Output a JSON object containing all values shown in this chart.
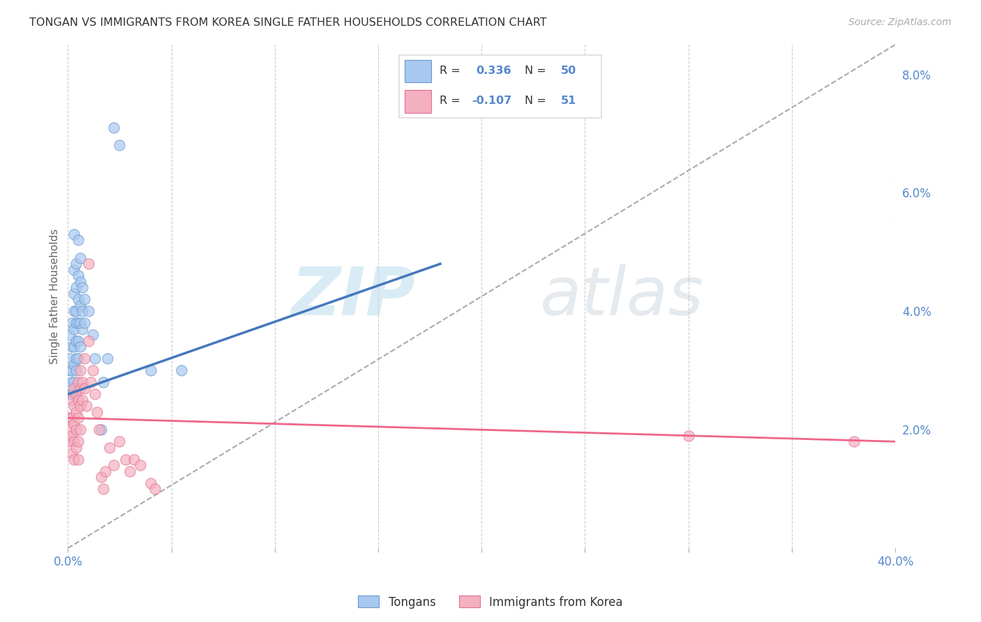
{
  "title": "TONGAN VS IMMIGRANTS FROM KOREA SINGLE FATHER HOUSEHOLDS CORRELATION CHART",
  "source": "Source: ZipAtlas.com",
  "ylabel": "Single Father Households",
  "xlim": [
    0.0,
    0.4
  ],
  "ylim": [
    0.0,
    0.085
  ],
  "legend_label1": "Tongans",
  "legend_label2": "Immigrants from Korea",
  "R1": 0.336,
  "N1": 50,
  "R2": -0.107,
  "N2": 51,
  "color_blue": "#A8C8F0",
  "color_pink": "#F4B0C0",
  "edge_blue": "#6699CC",
  "edge_pink": "#E07090",
  "line_blue": "#4477BB",
  "line_pink": "#EE6688",
  "text_blue": "#5588CC",
  "grid_color": "#CCCCCC",
  "scatter_blue": [
    [
      0.001,
      0.036
    ],
    [
      0.001,
      0.032
    ],
    [
      0.001,
      0.03
    ],
    [
      0.001,
      0.026
    ],
    [
      0.002,
      0.038
    ],
    [
      0.002,
      0.034
    ],
    [
      0.002,
      0.03
    ],
    [
      0.002,
      0.028
    ],
    [
      0.002,
      0.026
    ],
    [
      0.003,
      0.053
    ],
    [
      0.003,
      0.047
    ],
    [
      0.003,
      0.043
    ],
    [
      0.003,
      0.04
    ],
    [
      0.003,
      0.037
    ],
    [
      0.003,
      0.034
    ],
    [
      0.003,
      0.031
    ],
    [
      0.003,
      0.028
    ],
    [
      0.004,
      0.048
    ],
    [
      0.004,
      0.044
    ],
    [
      0.004,
      0.04
    ],
    [
      0.004,
      0.038
    ],
    [
      0.004,
      0.035
    ],
    [
      0.004,
      0.032
    ],
    [
      0.004,
      0.03
    ],
    [
      0.005,
      0.052
    ],
    [
      0.005,
      0.046
    ],
    [
      0.005,
      0.042
    ],
    [
      0.005,
      0.038
    ],
    [
      0.005,
      0.035
    ],
    [
      0.005,
      0.032
    ],
    [
      0.006,
      0.049
    ],
    [
      0.006,
      0.045
    ],
    [
      0.006,
      0.041
    ],
    [
      0.006,
      0.038
    ],
    [
      0.006,
      0.034
    ],
    [
      0.007,
      0.044
    ],
    [
      0.007,
      0.04
    ],
    [
      0.007,
      0.037
    ],
    [
      0.008,
      0.042
    ],
    [
      0.008,
      0.038
    ],
    [
      0.01,
      0.04
    ],
    [
      0.012,
      0.036
    ],
    [
      0.013,
      0.032
    ],
    [
      0.016,
      0.02
    ],
    [
      0.017,
      0.028
    ],
    [
      0.019,
      0.032
    ],
    [
      0.022,
      0.071
    ],
    [
      0.025,
      0.068
    ],
    [
      0.04,
      0.03
    ],
    [
      0.055,
      0.03
    ]
  ],
  "scatter_pink": [
    [
      0.001,
      0.022
    ],
    [
      0.001,
      0.02
    ],
    [
      0.001,
      0.018
    ],
    [
      0.002,
      0.025
    ],
    [
      0.002,
      0.022
    ],
    [
      0.002,
      0.019
    ],
    [
      0.002,
      0.016
    ],
    [
      0.003,
      0.027
    ],
    [
      0.003,
      0.024
    ],
    [
      0.003,
      0.021
    ],
    [
      0.003,
      0.018
    ],
    [
      0.003,
      0.015
    ],
    [
      0.004,
      0.026
    ],
    [
      0.004,
      0.023
    ],
    [
      0.004,
      0.02
    ],
    [
      0.004,
      0.017
    ],
    [
      0.005,
      0.028
    ],
    [
      0.005,
      0.025
    ],
    [
      0.005,
      0.022
    ],
    [
      0.005,
      0.018
    ],
    [
      0.005,
      0.015
    ],
    [
      0.006,
      0.03
    ],
    [
      0.006,
      0.027
    ],
    [
      0.006,
      0.024
    ],
    [
      0.006,
      0.02
    ],
    [
      0.007,
      0.028
    ],
    [
      0.007,
      0.025
    ],
    [
      0.008,
      0.032
    ],
    [
      0.008,
      0.027
    ],
    [
      0.009,
      0.024
    ],
    [
      0.01,
      0.048
    ],
    [
      0.01,
      0.035
    ],
    [
      0.011,
      0.028
    ],
    [
      0.012,
      0.03
    ],
    [
      0.013,
      0.026
    ],
    [
      0.014,
      0.023
    ],
    [
      0.015,
      0.02
    ],
    [
      0.016,
      0.012
    ],
    [
      0.017,
      0.01
    ],
    [
      0.018,
      0.013
    ],
    [
      0.02,
      0.017
    ],
    [
      0.022,
      0.014
    ],
    [
      0.025,
      0.018
    ],
    [
      0.028,
      0.015
    ],
    [
      0.03,
      0.013
    ],
    [
      0.032,
      0.015
    ],
    [
      0.035,
      0.014
    ],
    [
      0.04,
      0.011
    ],
    [
      0.042,
      0.01
    ],
    [
      0.3,
      0.019
    ],
    [
      0.38,
      0.018
    ]
  ],
  "blue_line_x": [
    0.0,
    0.18
  ],
  "blue_line_y": [
    0.026,
    0.048
  ],
  "pink_line_x": [
    0.0,
    0.4
  ],
  "pink_line_y": [
    0.022,
    0.018
  ],
  "dash_line_x": [
    0.0,
    0.4
  ],
  "dash_line_y": [
    0.0,
    0.085
  ]
}
